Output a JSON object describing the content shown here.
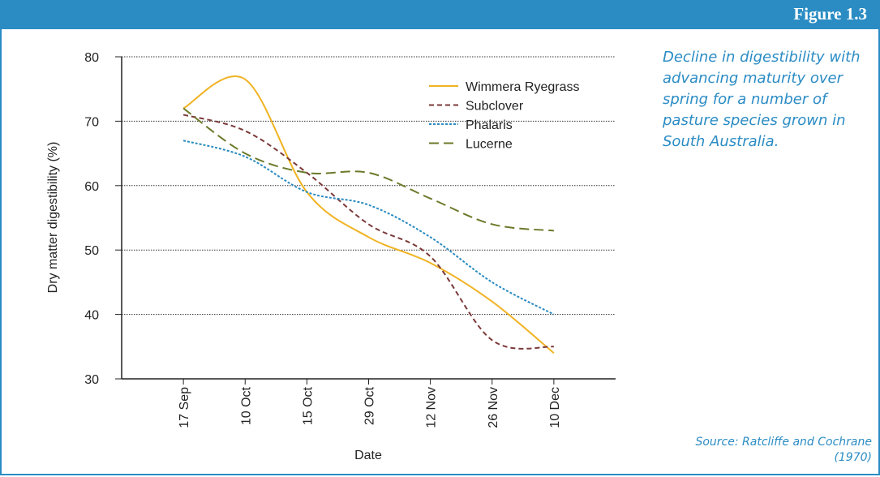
{
  "figure_label": "Figure 1.3",
  "caption": "Decline in digestibility with advancing maturity over spring for a number of pasture species grown in South Australia.",
  "source": "Source: Ratcliffe and Cochrane (1970)",
  "chart_data": {
    "type": "line",
    "x_label": "Date",
    "y_label": "Dry matter digestibility (%)",
    "categories": [
      "17 Sep",
      "10 Oct",
      "15 Oct",
      "29 Oct",
      "12 Nov",
      "26 Nov",
      "10 Dec"
    ],
    "series": [
      {
        "name": "Wimmera Ryegrass",
        "color": "#f0b323",
        "style": "solid",
        "values": [
          72,
          76.5,
          59,
          52,
          48,
          42,
          34
        ]
      },
      {
        "name": "Subclover",
        "color": "#7b3a3a",
        "style": "dashed",
        "values": [
          71,
          68.5,
          62,
          54,
          49,
          36,
          35
        ]
      },
      {
        "name": "Phalaris",
        "color": "#2a8bc0",
        "style": "dotted",
        "values": [
          67,
          64.5,
          59,
          57,
          52,
          45,
          40
        ]
      },
      {
        "name": "Lucerne",
        "color": "#6b7a2a",
        "style": "long-dashed",
        "values": [
          72,
          65,
          62,
          62,
          58,
          54,
          53
        ]
      }
    ],
    "ylim": [
      30,
      80
    ],
    "yticks": [
      30,
      40,
      50,
      60,
      70,
      80
    ],
    "grid": true,
    "legend": "top-right"
  }
}
